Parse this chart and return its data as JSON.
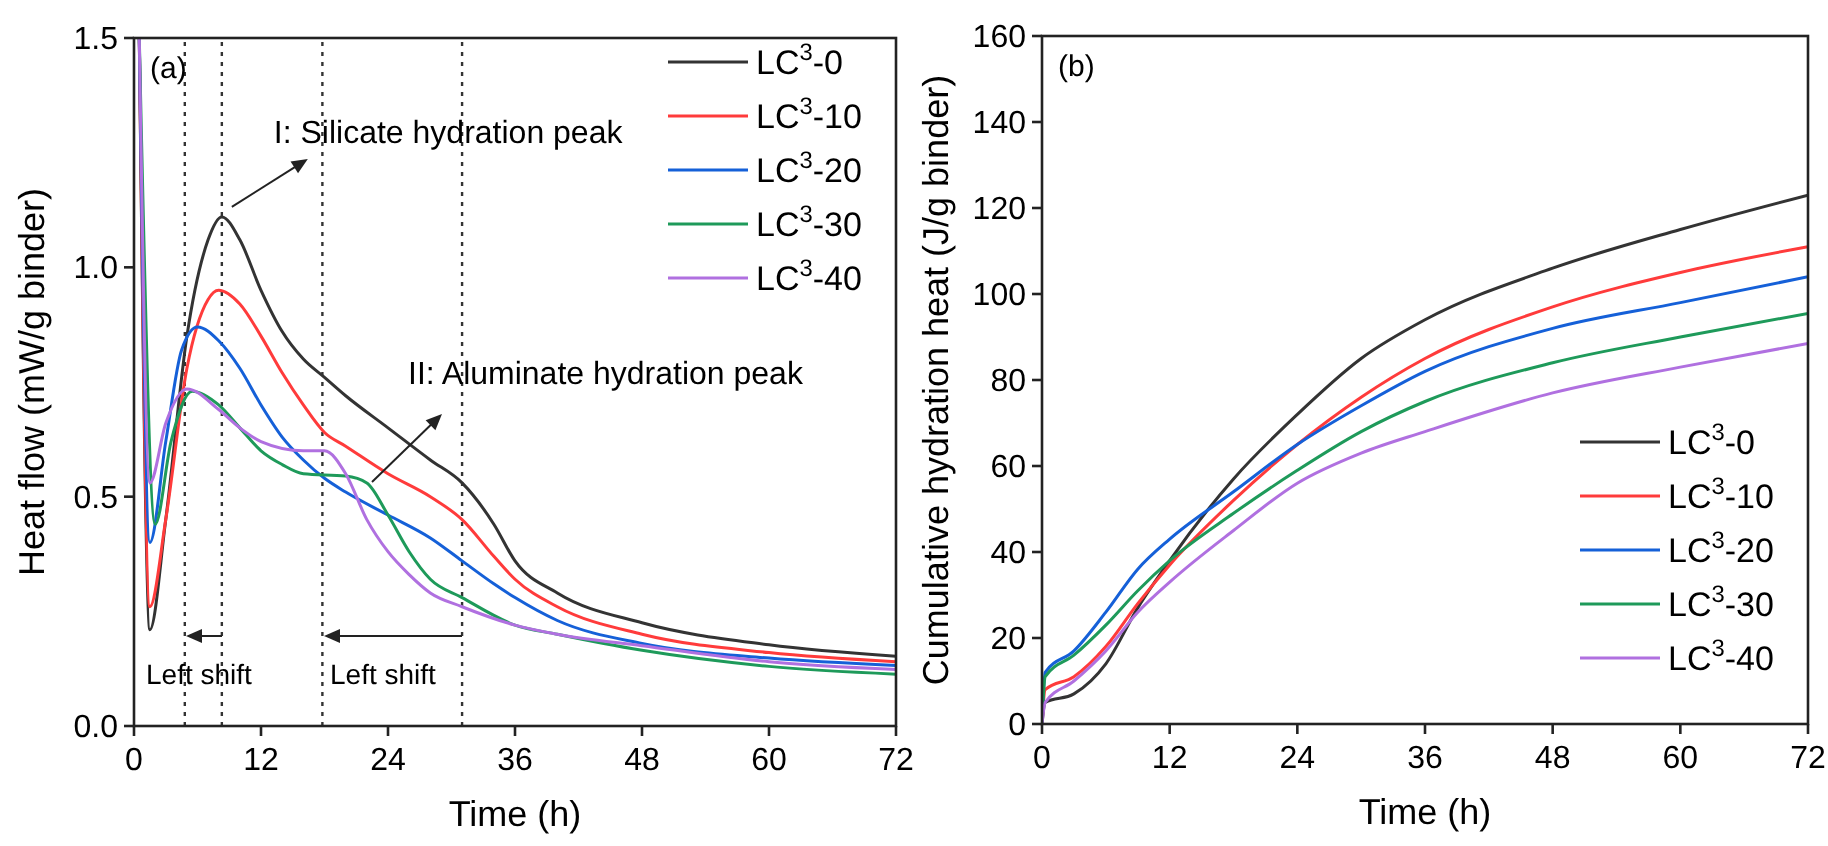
{
  "chart_data": [
    {
      "type": "line",
      "xlabel": "Time (h)",
      "ylabel": "Heat flow (mW/g binder)",
      "xlim": [
        0,
        72
      ],
      "ylim": [
        0,
        1.5
      ],
      "xticks": [
        0,
        12,
        24,
        36,
        48,
        60,
        72
      ],
      "yticks": [
        {
          "value": 0,
          "label": "0.0"
        },
        0.5,
        {
          "value": 1,
          "label": "1.0"
        },
        1.5
      ],
      "legend": "top right",
      "grid": false,
      "line_style": "solid",
      "marker": "none",
      "annotations": [
        "(a)",
        {
          "text": "I: Silicate hydration peak",
          "x": 8.3,
          "y": 1.11
        },
        "II: Aluminate hydration peak",
        "Left shift",
        "Left shift"
      ],
      "ref_lines": [
        {
          "axis": "x",
          "value": 4.8,
          "line_style": "dotted",
          "color": "#333333"
        },
        {
          "axis": "x",
          "value": 8.3,
          "line_style": "dotted",
          "color": "#333333"
        },
        {
          "axis": "x",
          "value": 17.8,
          "line_style": "dotted",
          "color": "#333333"
        },
        {
          "axis": "x",
          "value": 31,
          "line_style": "dotted",
          "color": "#333333"
        }
      ],
      "series": [
        {
          "name": "LC$^{3}$-0",
          "color": "#333333",
          "x": [
            0.5,
            1.5,
            3,
            5,
            7,
            8.3,
            10,
            12,
            14,
            16,
            18,
            20,
            24,
            28,
            31,
            34,
            36,
            40,
            48,
            60,
            72
          ],
          "values": [
            1.5,
            0.21,
            0.45,
            0.85,
            1.06,
            1.11,
            1.06,
            0.95,
            0.86,
            0.8,
            0.76,
            0.72,
            0.65,
            0.58,
            0.53,
            0.44,
            0.36,
            0.29,
            0.225,
            0.177,
            0.152
          ]
        },
        {
          "name": "LC$^{3}$-10",
          "color": "#ff3b3b",
          "x": [
            0.5,
            1.5,
            3,
            5,
            7,
            8,
            10,
            12,
            14,
            16,
            18,
            20,
            24,
            28,
            31,
            34,
            36,
            40,
            48,
            60,
            72
          ],
          "values": [
            1.5,
            0.26,
            0.45,
            0.78,
            0.93,
            0.95,
            0.92,
            0.85,
            0.77,
            0.7,
            0.64,
            0.61,
            0.55,
            0.5,
            0.45,
            0.37,
            0.32,
            0.26,
            0.2,
            0.16,
            0.14
          ]
        },
        {
          "name": "LC$^{3}$-20",
          "color": "#1560d8",
          "x": [
            0.5,
            1.5,
            3,
            4.5,
            6,
            8,
            10,
            12,
            14,
            16,
            18,
            20,
            24,
            28,
            31,
            34,
            36,
            40,
            48,
            60,
            72
          ],
          "values": [
            1.5,
            0.4,
            0.62,
            0.82,
            0.87,
            0.84,
            0.78,
            0.7,
            0.63,
            0.58,
            0.54,
            0.51,
            0.46,
            0.41,
            0.36,
            0.31,
            0.28,
            0.23,
            0.18,
            0.148,
            0.132
          ]
        },
        {
          "name": "LC$^{3}$-30",
          "color": "#1e9a5a",
          "x": [
            0.5,
            2,
            3.5,
            5.5,
            8,
            10,
            12,
            14,
            16,
            20,
            22,
            24,
            26,
            28,
            31,
            36,
            40,
            48,
            60,
            72
          ],
          "values": [
            1.5,
            0.44,
            0.62,
            0.73,
            0.7,
            0.65,
            0.6,
            0.57,
            0.55,
            0.545,
            0.53,
            0.46,
            0.38,
            0.32,
            0.28,
            0.22,
            0.2,
            0.165,
            0.13,
            0.113
          ]
        },
        {
          "name": "LC$^{3}$-40",
          "color": "#b070e0",
          "x": [
            0.5,
            1.5,
            3,
            5,
            8,
            10,
            12,
            16,
            18,
            20,
            22,
            24,
            26,
            28,
            31,
            36,
            40,
            48,
            60,
            72
          ],
          "values": [
            1.5,
            0.53,
            0.66,
            0.735,
            0.69,
            0.65,
            0.62,
            0.6,
            0.6,
            0.55,
            0.45,
            0.38,
            0.33,
            0.29,
            0.26,
            0.22,
            0.2,
            0.175,
            0.14,
            0.123
          ]
        }
      ]
    },
    {
      "type": "line",
      "xlabel": "Time (h)",
      "ylabel": "Cumulative hydration heat (J/g binder)",
      "xlim": [
        0,
        72
      ],
      "ylim": [
        0,
        160
      ],
      "xticks": [
        0,
        12,
        24,
        36,
        48,
        60,
        72
      ],
      "yticks": [
        0,
        20,
        40,
        60,
        80,
        100,
        120,
        140,
        160
      ],
      "legend": "bottom right",
      "grid": false,
      "line_style": "solid",
      "marker": "none",
      "annotations": [
        "(b)"
      ],
      "series": [
        {
          "name": "LC$^{3}$-0",
          "color": "#333333",
          "x": [
            0,
            0.3,
            3,
            6,
            9,
            12,
            18,
            24,
            30,
            36,
            48,
            60,
            72
          ],
          "values": [
            0,
            5,
            7,
            14,
            27,
            38,
            57,
            72,
            85,
            94,
            106,
            115,
            123
          ]
        },
        {
          "name": "LC$^{3}$-10",
          "color": "#ff3b3b",
          "x": [
            0,
            0.3,
            3,
            6,
            9,
            12,
            18,
            24,
            30,
            36,
            48,
            60,
            72
          ],
          "values": [
            0,
            8,
            11,
            18,
            28,
            37,
            52,
            65,
            76,
            85,
            97,
            105,
            111
          ]
        },
        {
          "name": "LC$^{3}$-20",
          "color": "#1560d8",
          "x": [
            0,
            0.3,
            3,
            6,
            9,
            12,
            18,
            24,
            30,
            36,
            48,
            60,
            72
          ],
          "values": [
            0,
            12,
            17,
            26,
            36,
            43,
            54,
            65,
            74,
            82,
            92,
            98,
            104
          ]
        },
        {
          "name": "LC$^{3}$-30",
          "color": "#1e9a5a",
          "x": [
            0,
            0.3,
            3,
            6,
            9,
            12,
            18,
            24,
            30,
            36,
            48,
            60,
            72
          ],
          "values": [
            0,
            11,
            16,
            23,
            31,
            38,
            49,
            59,
            68,
            75,
            84,
            90,
            95.5
          ]
        },
        {
          "name": "LC$^{3}$-40",
          "color": "#b070e0",
          "x": [
            0,
            0.3,
            3,
            6,
            9,
            12,
            18,
            24,
            30,
            36,
            48,
            60,
            72
          ],
          "values": [
            0,
            5,
            10,
            17,
            26,
            33,
            45,
            56,
            63,
            68,
            77,
            83,
            88.5
          ]
        }
      ]
    }
  ]
}
